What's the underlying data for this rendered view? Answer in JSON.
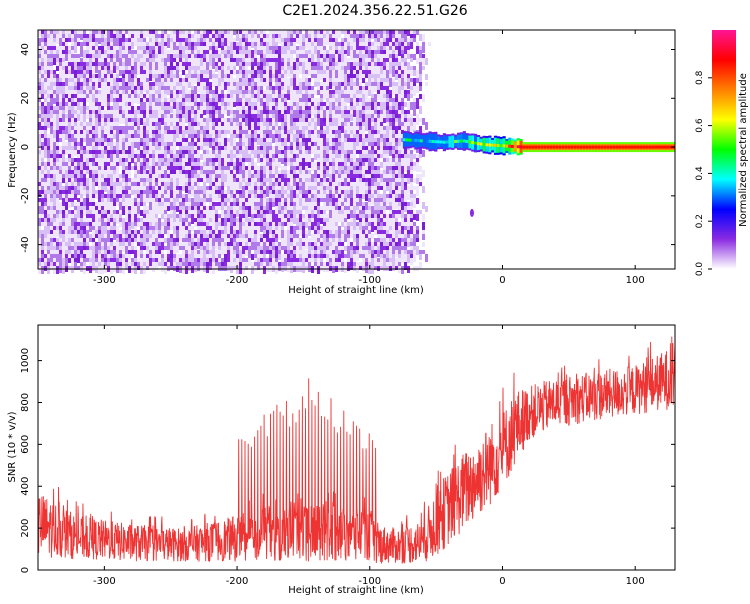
{
  "title": "C2E1.2024.356.22.51.G26",
  "colors": {
    "snr_line": "#ee3333",
    "spectro_background": "#ffffff"
  },
  "chart_data": [
    {
      "type": "heatmap",
      "name": "spectrogram",
      "xlabel": "Height of straight line (km)",
      "ylabel": "Frequency (Hz)",
      "xlim": [
        -350,
        130
      ],
      "ylim": [
        -50,
        48
      ],
      "xticks": [
        -300,
        -200,
        -100,
        0,
        100
      ],
      "yticks": [
        -40,
        -20,
        0,
        20,
        40
      ],
      "colorbar": {
        "label": "Normalized spectral amplitude",
        "range": [
          0,
          1
        ],
        "ticks": [
          0.0,
          0.2,
          0.4,
          0.6,
          0.8
        ],
        "colors": [
          "#ffffff",
          "#8a2be2",
          "#0000ff",
          "#00ffff",
          "#00ff00",
          "#ffff00",
          "#ff7f00",
          "#ff0000",
          "#ff1493"
        ]
      },
      "features": {
        "noise_region_x": [
          -350,
          -75
        ],
        "fading_noise_x": [
          -75,
          -55
        ],
        "signal_track": [
          {
            "x": -75,
            "freq": 3,
            "amp": 0.35
          },
          {
            "x": -60,
            "freq": 2.5,
            "amp": 0.35
          },
          {
            "x": -45,
            "freq": 2,
            "amp": 0.4
          },
          {
            "x": -30,
            "freq": 2.5,
            "amp": 0.45
          },
          {
            "x": -15,
            "freq": 1,
            "amp": 0.55
          },
          {
            "x": 0,
            "freq": 0.5,
            "amp": 0.6
          },
          {
            "x": 15,
            "freq": 0,
            "amp": 0.9
          },
          {
            "x": 130,
            "freq": 0,
            "amp": 0.9
          }
        ],
        "isolated_blob": {
          "x": -23,
          "freq": -27
        }
      }
    },
    {
      "type": "line",
      "name": "snr",
      "xlabel": "Height of straight line (km)",
      "ylabel": "SNR (10 * v/v)",
      "xlim": [
        -350,
        130
      ],
      "ylim": [
        0,
        1170
      ],
      "xticks": [
        -300,
        -200,
        -100,
        0,
        100
      ],
      "yticks": [
        0,
        200,
        400,
        600,
        800,
        1000
      ],
      "envelope": {
        "x": [
          -350,
          -320,
          -280,
          -240,
          -200,
          -180,
          -160,
          -140,
          -120,
          -100,
          -95,
          -80,
          -60,
          -50,
          -40,
          -30,
          -20,
          -10,
          0,
          10,
          20,
          40,
          60,
          80,
          100,
          120,
          130
        ],
        "low": [
          60,
          50,
          40,
          40,
          40,
          40,
          40,
          40,
          40,
          40,
          30,
          30,
          30,
          60,
          120,
          180,
          240,
          300,
          380,
          500,
          620,
          680,
          700,
          720,
          740,
          760,
          770
        ],
        "high": [
          380,
          260,
          220,
          200,
          260,
          300,
          300,
          310,
          300,
          300,
          220,
          200,
          240,
          400,
          480,
          560,
          620,
          700,
          760,
          860,
          880,
          920,
          940,
          960,
          980,
          1040,
          1080
        ]
      },
      "spikes": {
        "x_range": [
          -200,
          -95
        ],
        "peak_range": [
          420,
          930
        ]
      }
    }
  ]
}
